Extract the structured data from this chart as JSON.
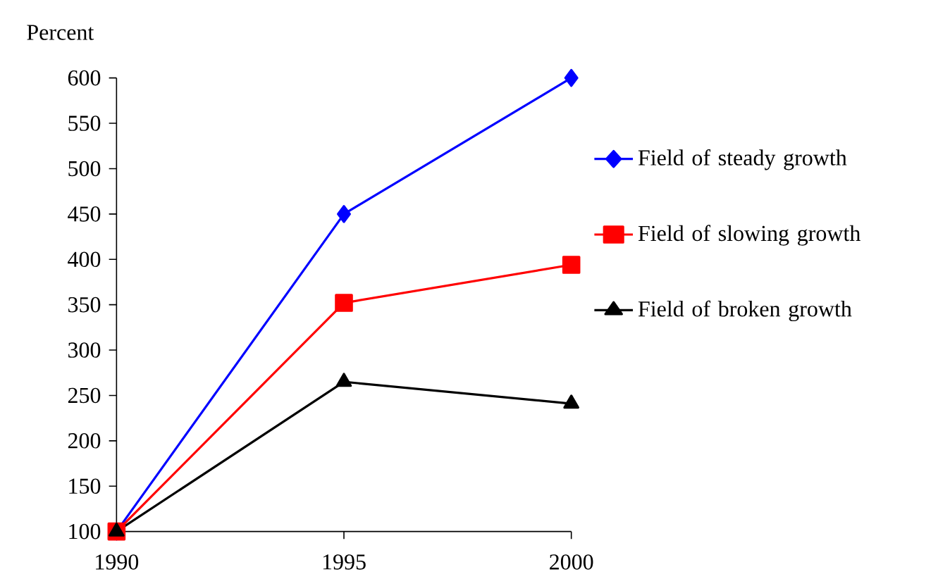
{
  "chart_data": {
    "type": "line",
    "ylabel": "Percent",
    "categories": [
      "1990",
      "1995",
      "2000"
    ],
    "series": [
      {
        "name": "Field of steady growth",
        "color": "#0000ff",
        "marker": "diamond",
        "values": [
          100,
          450,
          600
        ]
      },
      {
        "name": "Field of slowing growth",
        "color": "#ff0000",
        "marker": "square",
        "values": [
          100,
          352,
          394
        ]
      },
      {
        "name": "Field of broken growth",
        "color": "#000000",
        "marker": "triangle",
        "values": [
          100,
          265,
          241
        ]
      }
    ],
    "ylim": [
      100,
      600
    ],
    "yticks": [
      100,
      150,
      200,
      250,
      300,
      350,
      400,
      450,
      500,
      550,
      600
    ],
    "grid": false,
    "legend": "right",
    "line_style": "solid"
  }
}
